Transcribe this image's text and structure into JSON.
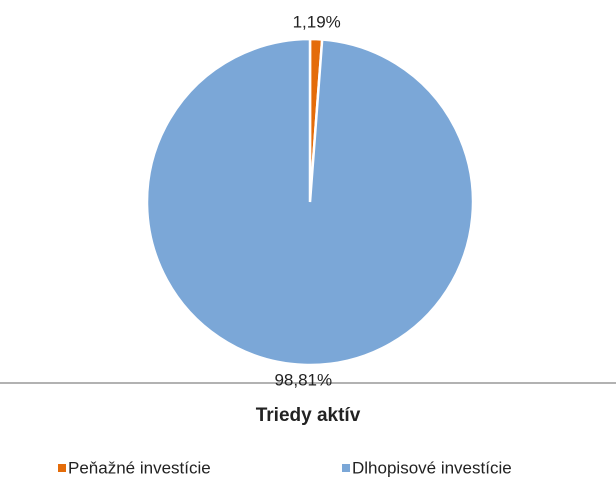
{
  "chart_data": {
    "type": "pie",
    "title": "Triedy aktív",
    "categories": [
      "Peňažné investície",
      "Dlhopisové investície"
    ],
    "values": [
      1.19,
      98.81
    ],
    "value_labels": [
      "1,19%",
      "98,81%"
    ],
    "colors": [
      "#e46c0a",
      "#7ba7d7"
    ]
  }
}
